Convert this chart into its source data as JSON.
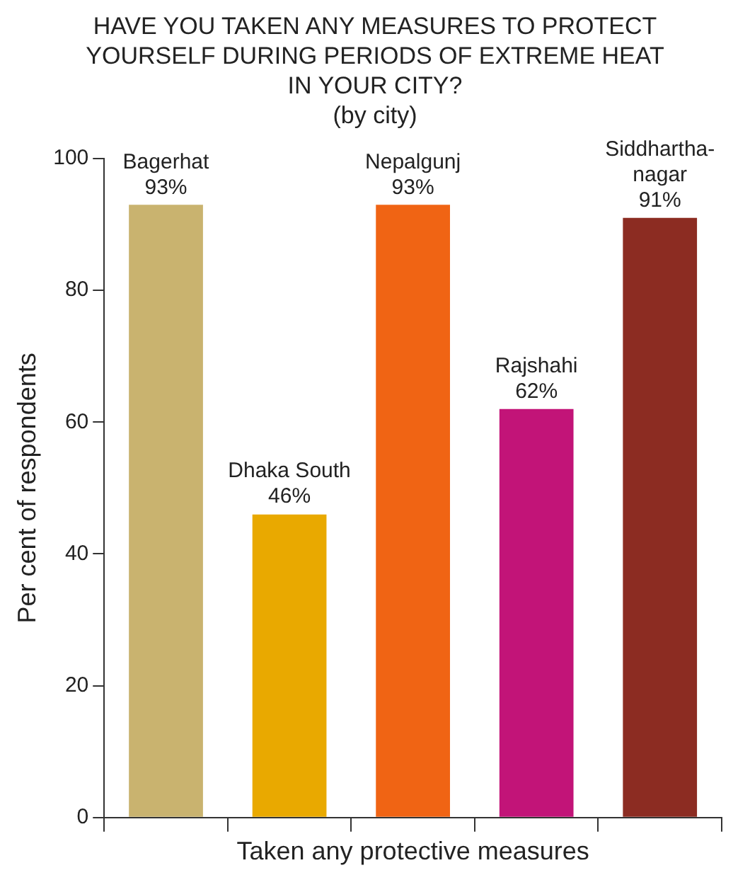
{
  "chart_data": {
    "type": "bar",
    "title": "HAVE YOU TAKEN ANY MEASURES TO PROTECT YOURSELF DURING PERIODS OF EXTREME HEAT IN YOUR CITY?",
    "subtitle": "(by city)",
    "xlabel": "Taken any protective measures",
    "ylabel": "Per cent of respondents",
    "categories": [
      "Bagerhat",
      "Dhaka South",
      "Nepalgunj",
      "Rajshahi",
      "Siddhartha-nagar"
    ],
    "values": [
      93,
      46,
      93,
      62,
      91
    ],
    "colors": [
      "#c9b36f",
      "#e9a900",
      "#f06414",
      "#c21478",
      "#8c2c22"
    ],
    "value_labels": [
      "93%",
      "46%",
      "93%",
      "62%",
      "91%"
    ],
    "ylim": [
      0,
      100
    ],
    "yticks": [
      0,
      20,
      40,
      60,
      80,
      100
    ],
    "grid": false,
    "legend": false
  }
}
